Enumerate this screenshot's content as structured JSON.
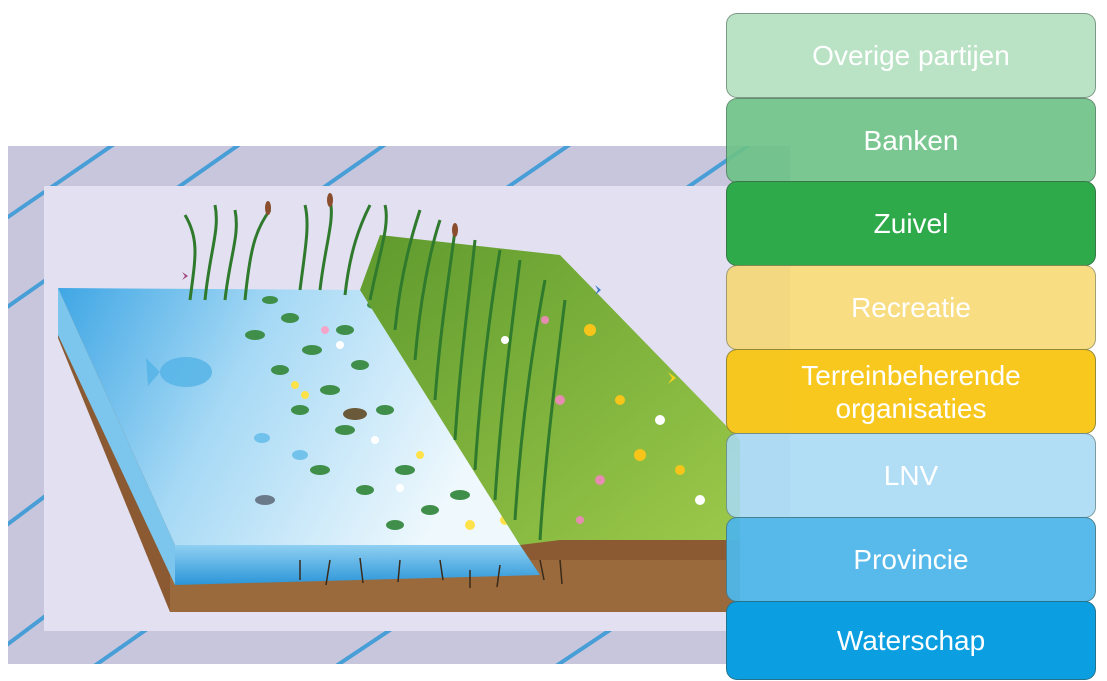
{
  "tiles": [
    {
      "label": "Overige partijen",
      "color": "#b5e0c0",
      "opacity": 0.92
    },
    {
      "label": "Banken",
      "color": "#6cc286",
      "opacity": 0.9
    },
    {
      "label": "Zuivel",
      "color": "#2faa4b",
      "opacity": 1
    },
    {
      "label": "Recreatie",
      "color": "#f7d669",
      "opacity": 0.82
    },
    {
      "label": "Terreinbeherende organisaties",
      "color": "#f8c613",
      "opacity": 0.95
    },
    {
      "label": "LNV",
      "color": "#a7daf4",
      "opacity": 0.88
    },
    {
      "label": "Provincie",
      "color": "#4fb7e9",
      "opacity": 0.95
    },
    {
      "label": "Waterschap",
      "color": "#0b9ee0",
      "opacity": 1
    }
  ],
  "colors": {
    "backdrop": "#c9c7dd",
    "panel": "#e1dff0",
    "stripe": "#3b9ad6",
    "water_deep": "#4fb4ea",
    "water_light": "#e3f4fc",
    "soil": "#8d5a34",
    "grass": "#7fb23c",
    "reed": "#2f7a2d"
  }
}
